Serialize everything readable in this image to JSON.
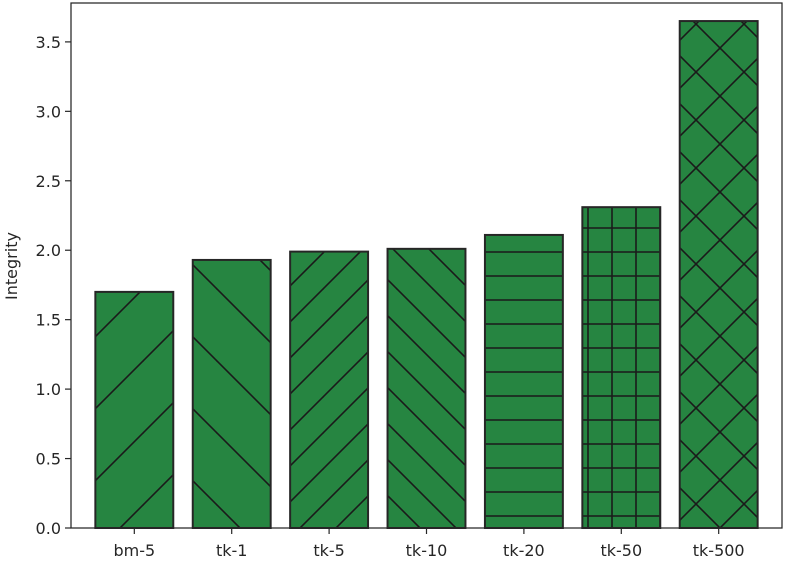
{
  "chart_data": {
    "type": "bar",
    "title": "",
    "xlabel": "",
    "ylabel": "Integrity",
    "categories": [
      "bm-5",
      "tk-1",
      "tk-5",
      "tk-10",
      "tk-20",
      "tk-50",
      "tk-500"
    ],
    "values": [
      1.7,
      1.93,
      1.99,
      2.01,
      2.11,
      2.31,
      3.65
    ],
    "hatches": [
      "/",
      "\\",
      "//",
      "\\\\",
      "-",
      "+",
      "x"
    ],
    "ylim": [
      0,
      3.78
    ],
    "yticks": [
      "0.0",
      "0.5",
      "1.0",
      "1.5",
      "2.0",
      "2.5",
      "3.0",
      "3.5"
    ],
    "grid": false,
    "legend": "none",
    "colors": {
      "bar_fill": "#268541",
      "bar_edge": "#262626",
      "hatch": "#1a1a1a",
      "axis": "#262626"
    }
  }
}
